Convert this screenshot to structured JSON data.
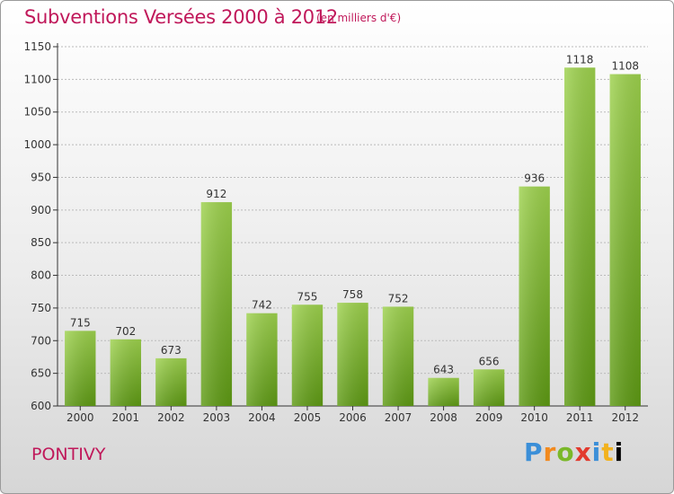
{
  "title": "Subventions Versées 2000 à 2012",
  "subtitle": "(en milliers d'€)",
  "location": "PONTIVY",
  "logo": [
    "P",
    "r",
    "o",
    "x",
    "i",
    "t",
    "i"
  ],
  "colors": {
    "title": "#c0185a",
    "bar_top": "#9ed24e",
    "bar_bottom": "#5e9a14",
    "axis": "#333333",
    "grid": "#bbbbbb"
  },
  "chart_data": {
    "type": "bar",
    "categories": [
      "2000",
      "2001",
      "2002",
      "2003",
      "2004",
      "2005",
      "2006",
      "2007",
      "2008",
      "2009",
      "2010",
      "2011",
      "2012"
    ],
    "values": [
      715,
      702,
      673,
      912,
      742,
      755,
      758,
      752,
      643,
      656,
      936,
      1118,
      1108
    ],
    "ylim": [
      600,
      1150
    ],
    "yticks": [
      600,
      650,
      700,
      750,
      800,
      850,
      900,
      950,
      1000,
      1050,
      1100,
      1150
    ],
    "grid": true,
    "data_labels": true
  }
}
